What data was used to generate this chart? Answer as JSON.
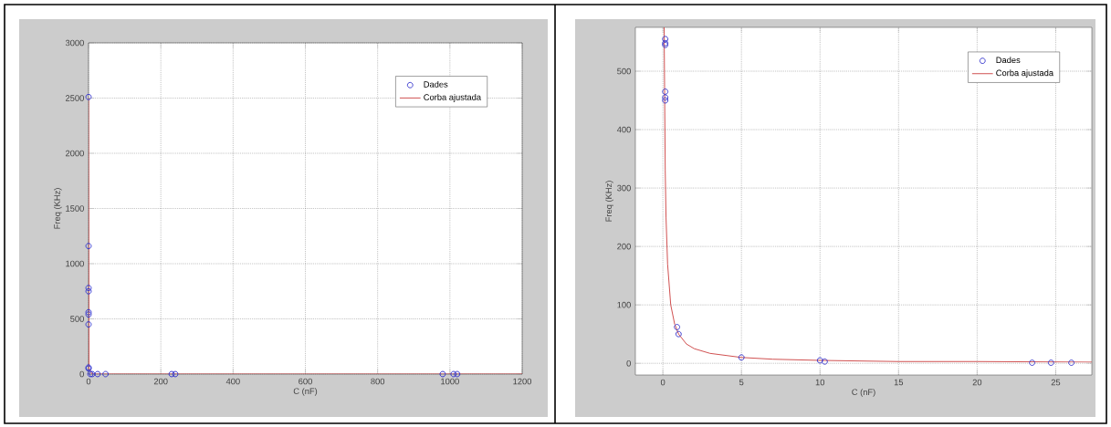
{
  "chart_data": [
    {
      "type": "scatter",
      "xlabel": "C (nF)",
      "ylabel": "Freq (KHz)",
      "xlim": [
        0,
        1200
      ],
      "ylim": [
        0,
        3000
      ],
      "xticks": [
        0,
        200,
        400,
        600,
        800,
        1000,
        1200
      ],
      "yticks": [
        0,
        500,
        1000,
        1500,
        2000,
        2500,
        3000
      ],
      "grid": true,
      "legend": "top right",
      "series": [
        {
          "name": "Dades",
          "marker": "circle",
          "color": "#3333cc",
          "x": [
            0,
            0,
            0,
            0,
            0,
            0,
            0,
            0,
            0,
            5,
            10,
            25,
            47,
            230,
            240,
            980,
            1010,
            1020
          ],
          "values": [
            2510,
            1160,
            780,
            750,
            560,
            540,
            450,
            60,
            50,
            0,
            0,
            0,
            0,
            0,
            0,
            0,
            0,
            0
          ]
        },
        {
          "name": "Corba ajustada",
          "type": "line",
          "color": "#cc4444",
          "x": [
            0,
            1,
            10,
            1200
          ],
          "values": [
            2500,
            50,
            0,
            0
          ]
        }
      ]
    },
    {
      "type": "scatter",
      "xlabel": "C (nF)",
      "ylabel": "Freq (KHz)",
      "xlim": [
        -1.75,
        27.3
      ],
      "ylim": [
        -20,
        575
      ],
      "xticks": [
        0,
        5,
        10,
        15,
        20,
        25
      ],
      "yticks": [
        0,
        100,
        200,
        300,
        400,
        500
      ],
      "grid": true,
      "legend": "top right",
      "series": [
        {
          "name": "Dades",
          "marker": "circle",
          "color": "#3333cc",
          "x": [
            0.15,
            0.15,
            0.15,
            0.15,
            0.15,
            0.15,
            0.9,
            1.0,
            5,
            10,
            10.3,
            23.5,
            24.7,
            26
          ],
          "values": [
            555,
            548,
            545,
            465,
            455,
            450,
            62,
            50,
            10,
            5,
            3,
            1,
            1,
            1
          ]
        },
        {
          "name": "Corba ajustada",
          "type": "line",
          "color": "#cc4444",
          "x": [
            0.08,
            0.1,
            0.15,
            0.2,
            0.3,
            0.5,
            0.75,
            1,
            1.5,
            2,
            3,
            5,
            7,
            10,
            15,
            20,
            27.3
          ],
          "values": [
            575,
            500,
            330,
            250,
            170,
            100,
            67,
            50,
            33,
            25,
            17,
            10,
            7,
            5,
            3,
            3,
            2
          ]
        }
      ]
    }
  ]
}
